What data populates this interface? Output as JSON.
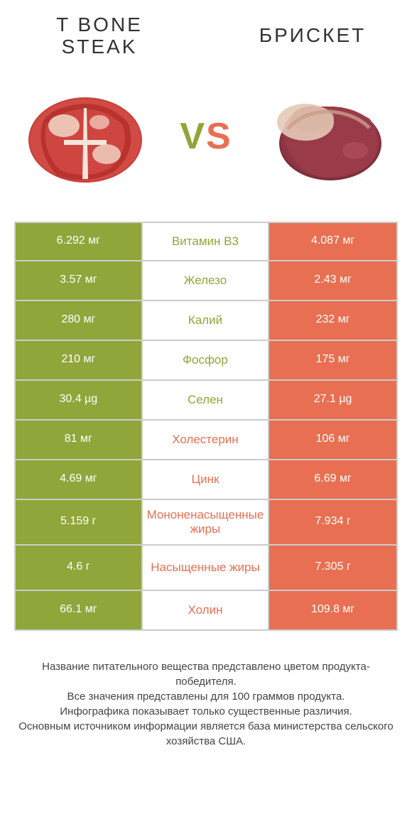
{
  "titles": {
    "left": "T BONE STEAK",
    "right": "БРИСКЕТ"
  },
  "vs": {
    "v": "V",
    "s": "S"
  },
  "colors": {
    "green": "#8fa63a",
    "orange": "#e86f52",
    "border": "#cccccc",
    "bg": "#ffffff"
  },
  "rows": [
    {
      "left": "6.292 мг",
      "label": "Витамин B3",
      "right": "4.087 мг",
      "winner": "left"
    },
    {
      "left": "3.57 мг",
      "label": "Железо",
      "right": "2.43 мг",
      "winner": "left"
    },
    {
      "left": "280 мг",
      "label": "Калий",
      "right": "232 мг",
      "winner": "left"
    },
    {
      "left": "210 мг",
      "label": "Фосфор",
      "right": "175 мг",
      "winner": "left"
    },
    {
      "left": "30.4 µg",
      "label": "Селен",
      "right": "27.1 µg",
      "winner": "left"
    },
    {
      "left": "81 мг",
      "label": "Холестерин",
      "right": "106 мг",
      "winner": "right"
    },
    {
      "left": "4.69 мг",
      "label": "Цинк",
      "right": "6.69 мг",
      "winner": "right"
    },
    {
      "left": "5.159 г",
      "label": "Мононенасыщенные жиры",
      "right": "7.934 г",
      "winner": "right",
      "tall": true
    },
    {
      "left": "4.6 г",
      "label": "Насыщенные жиры",
      "right": "7.305 г",
      "winner": "right",
      "tall": true
    },
    {
      "left": "66.1 мг",
      "label": "Холин",
      "right": "109.8 мг",
      "winner": "right"
    }
  ],
  "footer": {
    "line1": "Название питательного вещества представлено цветом продукта-победителя.",
    "line2": "Все значения представлены для 100 граммов продукта.",
    "line3": "Инфографика показывает только существенные различия.",
    "line4": "Основным источником информации является база министерства сельского хозяйства США."
  }
}
